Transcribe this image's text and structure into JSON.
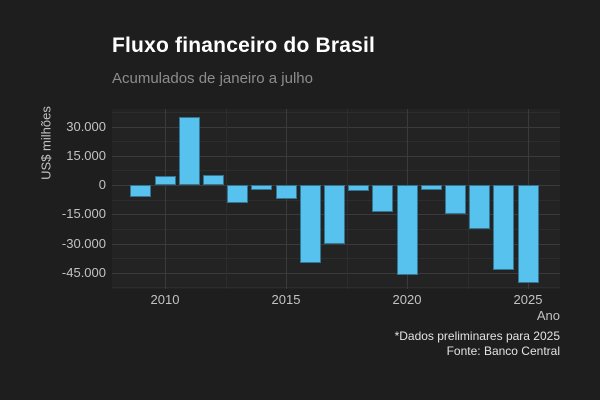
{
  "header": {
    "title": "Fluxo financeiro do Brasil",
    "subtitle": "Acumulados de janeiro a julho"
  },
  "caption": {
    "note": "*Dados preliminares para 2025",
    "source": "Fonte: Banco Central"
  },
  "chart_data": {
    "type": "bar",
    "title": "Fluxo financeiro do Brasil",
    "subtitle": "Acumulados de janeiro a julho",
    "xlabel": "Ano",
    "ylabel": "US$ milhões",
    "categories": [
      2009,
      2010,
      2011,
      2012,
      2013,
      2014,
      2015,
      2016,
      2017,
      2018,
      2019,
      2020,
      2021,
      2022,
      2023,
      2024,
      2025
    ],
    "values": [
      -6000,
      4500,
      35000,
      5000,
      -9000,
      -2500,
      -7000,
      -40000,
      -30500,
      -3000,
      -14000,
      -46000,
      -2500,
      -15000,
      -22500,
      -43500,
      -50000
    ],
    "ylim": [
      -53000,
      39000
    ],
    "yticks": [
      30000,
      15000,
      0,
      -15000,
      -30000,
      -45000
    ],
    "ytick_labels": [
      "30.000",
      "15.000",
      "0",
      "-15.000",
      "-30.000",
      "-45.000"
    ],
    "minor_yticks": [
      37500,
      22500,
      7500,
      -7500,
      -22500,
      -37500,
      -52500
    ],
    "xticks": [
      2010,
      2015,
      2020,
      2025
    ],
    "xtick_labels": [
      "2010",
      "2015",
      "2020",
      "2025"
    ],
    "minor_xticks": [
      2012.5,
      2017.5,
      2022.5
    ],
    "grid": "major and minor, dark theme",
    "legend": "none",
    "note": "*Dados preliminares para 2025",
    "source": "Fonte: Banco Central",
    "colors": {
      "bar": "#57c2ee",
      "background": "#1e1e1e",
      "panel": "#232323",
      "grid_major": "#3b3b3b",
      "grid_minor": "#2d2d2d",
      "title": "#ffffff",
      "subtitle": "#8d8d8d",
      "axis_text": "#c2c2c2",
      "caption": "#e3e3e3"
    }
  }
}
